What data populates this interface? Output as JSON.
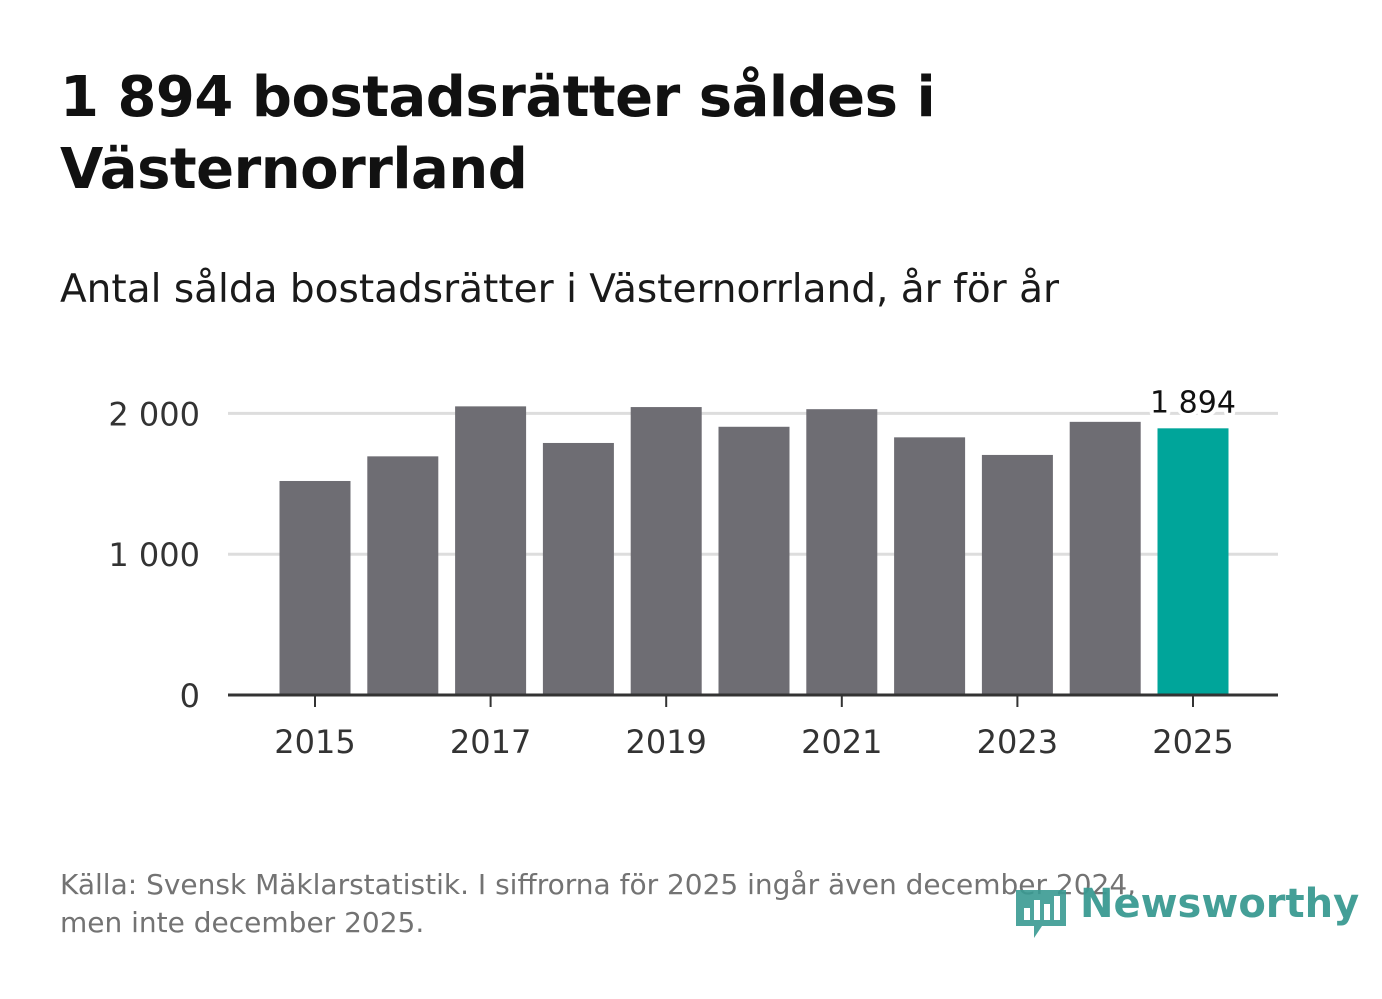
{
  "header": {
    "title": "1 894 bostadsrätter såldes i Västernorrland",
    "subtitle": "Antal sålda bostadsrätter i Västernorrland, år för år"
  },
  "chart_data": {
    "type": "bar",
    "categories": [
      "2015",
      "2016",
      "2017",
      "2018",
      "2019",
      "2020",
      "2021",
      "2022",
      "2023",
      "2024",
      "2025"
    ],
    "values": [
      1520,
      1695,
      2050,
      1790,
      2045,
      1905,
      2030,
      1830,
      1705,
      1940,
      1894
    ],
    "x_tick_labels": [
      "2015",
      "2017",
      "2019",
      "2021",
      "2023",
      "2025"
    ],
    "y_ticks": [
      0,
      1000,
      2000
    ],
    "y_tick_labels": [
      "0",
      "1 000",
      "2 000"
    ],
    "ylim": [
      0,
      2100
    ],
    "grid": true,
    "highlight_index": 10,
    "highlight_label": "1 894",
    "colors": {
      "bar": "#6e6d73",
      "highlight": "#00a59a",
      "grid": "#dddddd",
      "axis": "#333333"
    }
  },
  "footer": {
    "source_line1": "Källa: Svensk Mäklarstatistik. I siffrorna för 2025 ingår även december 2024,",
    "source_line2": "men inte december 2025.",
    "brand": "Newsworthy",
    "brand_color": "#3a9a92"
  }
}
